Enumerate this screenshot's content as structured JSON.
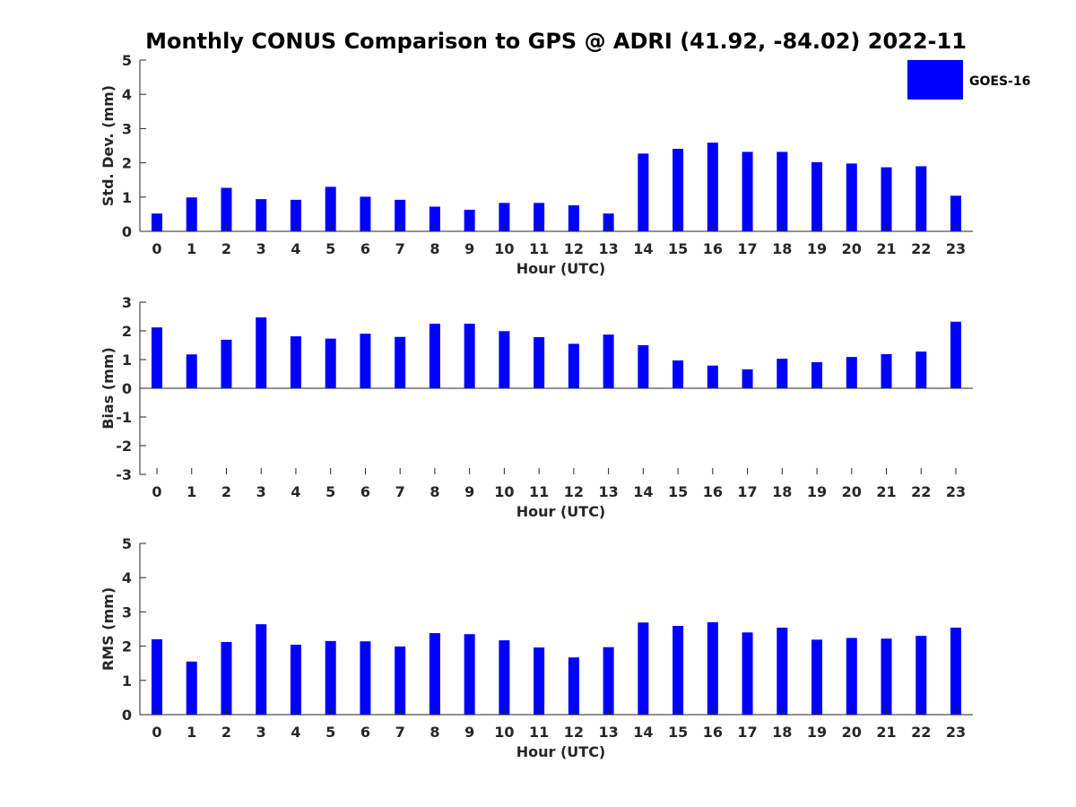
{
  "figure_title": "Monthly CONUS Comparison to GPS @ ADRI (41.92, -84.02) 2022-11",
  "legend": {
    "label": "GOES-16",
    "color": "#0000ff"
  },
  "chart_data": [
    {
      "type": "bar",
      "title": "",
      "xlabel": "Hour (UTC)",
      "ylabel": "Std. Dev. (mm)",
      "categories": [
        "0",
        "1",
        "2",
        "3",
        "4",
        "5",
        "6",
        "7",
        "8",
        "9",
        "10",
        "11",
        "12",
        "13",
        "14",
        "15",
        "16",
        "17",
        "18",
        "19",
        "20",
        "21",
        "22",
        "23"
      ],
      "yticks": [
        "0",
        "1",
        "2",
        "3",
        "4",
        "5"
      ],
      "ylim": [
        0,
        5
      ],
      "series": [
        {
          "name": "GOES-16",
          "color": "#0000ff",
          "values": [
            0.52,
            0.99,
            1.27,
            0.94,
            0.92,
            1.3,
            1.01,
            0.92,
            0.72,
            0.63,
            0.83,
            0.83,
            0.76,
            0.52,
            2.27,
            2.41,
            2.59,
            2.32,
            2.32,
            2.02,
            1.98,
            1.87,
            1.9,
            1.04
          ]
        }
      ],
      "grid": false,
      "legend_position": "top-right"
    },
    {
      "type": "bar",
      "title": "",
      "xlabel": "Hour (UTC)",
      "ylabel": "Bias (mm)",
      "categories": [
        "0",
        "1",
        "2",
        "3",
        "4",
        "5",
        "6",
        "7",
        "8",
        "9",
        "10",
        "11",
        "12",
        "13",
        "14",
        "15",
        "16",
        "17",
        "18",
        "19",
        "20",
        "21",
        "22",
        "23"
      ],
      "yticks": [
        "-3",
        "-2",
        "-1",
        "0",
        "1",
        "2",
        "3"
      ],
      "ylim": [
        -3,
        3
      ],
      "series": [
        {
          "name": "GOES-16",
          "color": "#0000ff",
          "values": [
            2.12,
            1.18,
            1.69,
            2.47,
            1.81,
            1.73,
            1.9,
            1.79,
            2.25,
            2.25,
            1.99,
            1.78,
            1.55,
            1.87,
            1.5,
            0.97,
            0.79,
            0.66,
            1.03,
            0.91,
            1.09,
            1.19,
            1.28,
            2.32
          ]
        }
      ],
      "grid": false
    },
    {
      "type": "bar",
      "title": "",
      "xlabel": "Hour (UTC)",
      "ylabel": "RMS (mm)",
      "categories": [
        "0",
        "1",
        "2",
        "3",
        "4",
        "5",
        "6",
        "7",
        "8",
        "9",
        "10",
        "11",
        "12",
        "13",
        "14",
        "15",
        "16",
        "17",
        "18",
        "19",
        "20",
        "21",
        "22",
        "23"
      ],
      "yticks": [
        "0",
        "1",
        "2",
        "3",
        "4",
        "5"
      ],
      "ylim": [
        0,
        5
      ],
      "series": [
        {
          "name": "GOES-16",
          "color": "#0000ff",
          "values": [
            2.2,
            1.55,
            2.12,
            2.64,
            2.04,
            2.15,
            2.14,
            1.99,
            2.38,
            2.35,
            2.17,
            1.96,
            1.67,
            1.97,
            2.69,
            2.59,
            2.7,
            2.4,
            2.54,
            2.19,
            2.24,
            2.22,
            2.3,
            2.54
          ]
        }
      ],
      "grid": false
    }
  ]
}
